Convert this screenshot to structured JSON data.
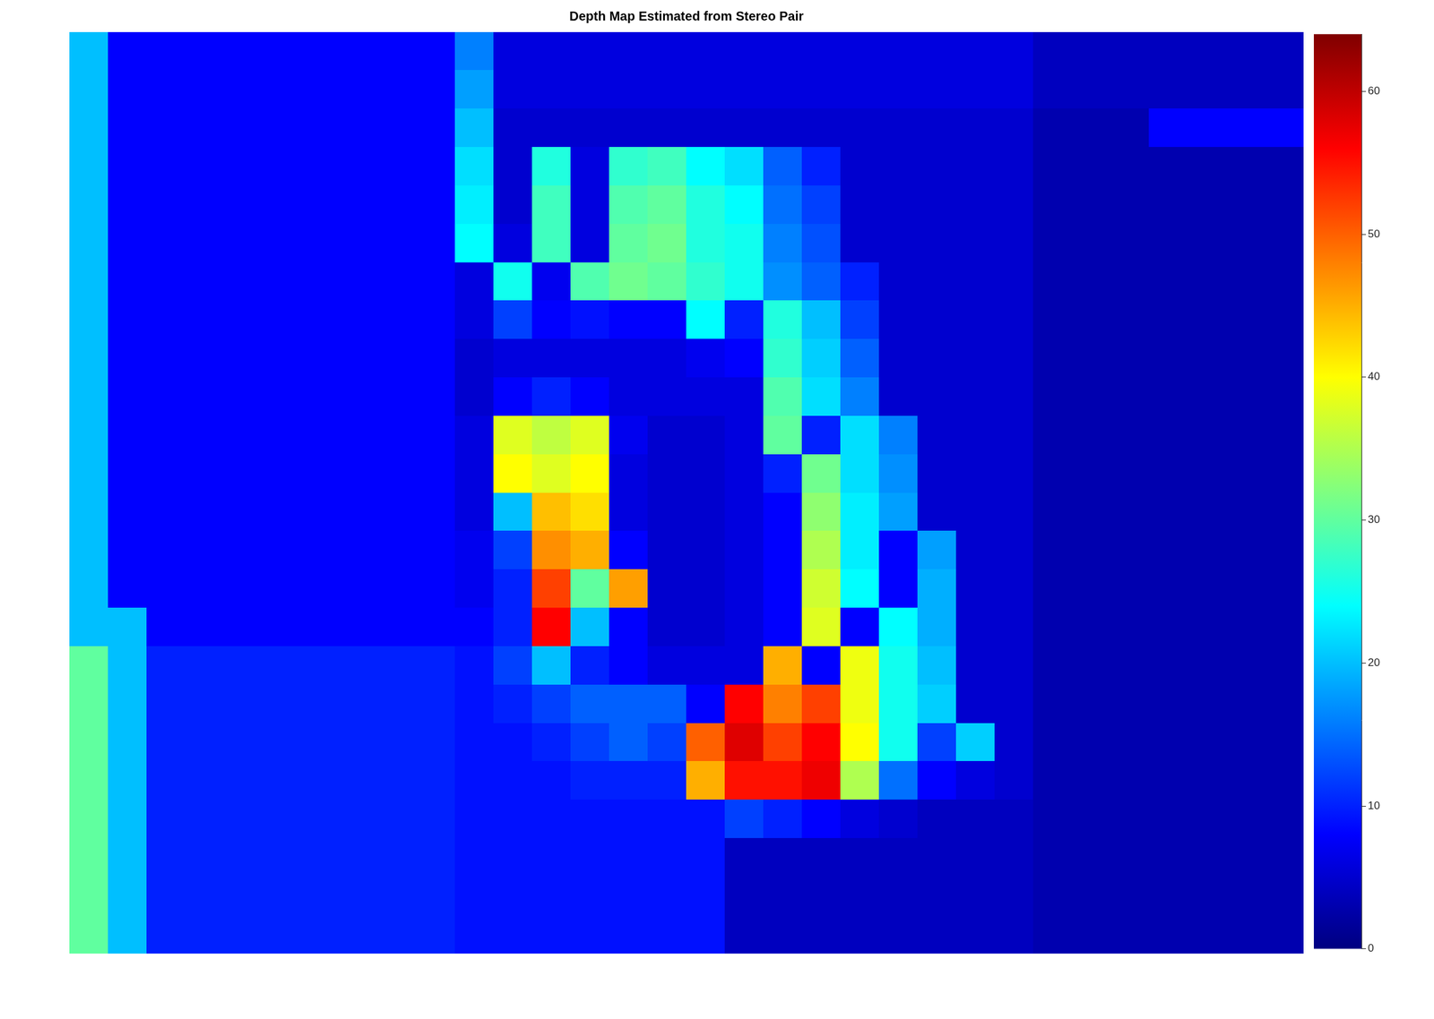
{
  "chart_data": {
    "type": "heatmap",
    "title": "Depth Map Estimated from Stereo Pair",
    "tick_labels": false,
    "cells": [
      [
        20,
        8,
        8,
        8,
        8,
        8,
        8,
        8,
        8,
        8,
        16,
        6,
        6,
        6,
        6,
        6,
        6,
        6,
        6,
        6,
        6,
        6,
        6,
        6,
        6,
        4,
        4,
        4,
        4,
        4,
        4,
        4
      ],
      [
        20,
        8,
        8,
        8,
        8,
        8,
        8,
        8,
        8,
        8,
        18,
        6,
        6,
        6,
        6,
        6,
        6,
        6,
        6,
        6,
        6,
        6,
        6,
        6,
        6,
        4,
        4,
        4,
        4,
        4,
        4,
        4
      ],
      [
        20,
        8,
        8,
        8,
        8,
        8,
        8,
        8,
        8,
        8,
        20,
        5,
        5,
        5,
        5,
        5,
        5,
        5,
        5,
        5,
        5,
        5,
        5,
        5,
        5,
        3,
        3,
        3,
        8,
        8,
        8,
        8
      ],
      [
        20,
        8,
        8,
        8,
        8,
        8,
        8,
        8,
        8,
        8,
        22,
        5,
        26,
        6,
        27,
        28,
        24,
        22,
        14,
        10,
        5,
        5,
        5,
        5,
        5,
        3,
        3,
        3,
        3,
        3,
        3,
        3
      ],
      [
        20,
        8,
        8,
        8,
        8,
        8,
        8,
        8,
        8,
        8,
        23,
        5,
        28,
        6,
        29,
        30,
        26,
        24,
        15,
        12,
        5,
        5,
        5,
        5,
        5,
        3,
        3,
        3,
        3,
        3,
        3,
        3
      ],
      [
        20,
        8,
        8,
        8,
        8,
        8,
        8,
        8,
        8,
        8,
        24,
        6,
        28,
        6,
        30,
        31,
        26,
        25,
        16,
        13,
        5,
        5,
        5,
        5,
        5,
        3,
        3,
        3,
        3,
        3,
        3,
        3
      ],
      [
        20,
        8,
        8,
        8,
        8,
        8,
        8,
        8,
        8,
        8,
        6,
        25,
        7,
        29,
        31,
        30,
        27,
        25,
        17,
        14,
        10,
        5,
        5,
        5,
        5,
        3,
        3,
        3,
        3,
        3,
        3,
        3
      ],
      [
        20,
        8,
        8,
        8,
        8,
        8,
        8,
        8,
        8,
        8,
        6,
        12,
        8,
        9,
        8,
        8,
        24,
        10,
        26,
        20,
        12,
        5,
        5,
        5,
        5,
        3,
        3,
        3,
        3,
        3,
        3,
        3
      ],
      [
        20,
        8,
        8,
        8,
        8,
        8,
        8,
        8,
        8,
        8,
        5,
        6,
        6,
        6,
        6,
        6,
        7,
        8,
        27,
        21,
        14,
        5,
        5,
        5,
        5,
        3,
        3,
        3,
        3,
        3,
        3,
        3
      ],
      [
        20,
        8,
        8,
        8,
        8,
        8,
        8,
        8,
        8,
        8,
        5,
        8,
        10,
        8,
        6,
        6,
        6,
        6,
        29,
        22,
        16,
        5,
        5,
        5,
        5,
        3,
        3,
        3,
        3,
        3,
        3,
        3
      ],
      [
        20,
        8,
        8,
        8,
        8,
        8,
        8,
        8,
        8,
        8,
        6,
        38,
        36,
        38,
        7,
        5,
        5,
        6,
        30,
        10,
        22,
        16,
        5,
        5,
        5,
        3,
        3,
        3,
        3,
        3,
        3,
        3
      ],
      [
        20,
        8,
        8,
        8,
        8,
        8,
        8,
        8,
        8,
        8,
        6,
        40,
        38,
        40,
        6,
        5,
        5,
        6,
        10,
        31,
        22,
        17,
        5,
        5,
        5,
        3,
        3,
        3,
        3,
        3,
        3,
        3
      ],
      [
        20,
        8,
        8,
        8,
        8,
        8,
        8,
        8,
        8,
        8,
        6,
        20,
        44,
        42,
        6,
        5,
        5,
        6,
        8,
        33,
        23,
        18,
        5,
        5,
        5,
        3,
        3,
        3,
        3,
        3,
        3,
        3
      ],
      [
        20,
        8,
        8,
        8,
        8,
        8,
        8,
        8,
        8,
        8,
        7,
        12,
        47,
        45,
        8,
        5,
        5,
        6,
        8,
        35,
        23,
        8,
        18,
        5,
        5,
        3,
        3,
        3,
        3,
        3,
        3,
        3
      ],
      [
        20,
        8,
        8,
        8,
        8,
        8,
        8,
        8,
        8,
        8,
        7,
        10,
        52,
        30,
        46,
        5,
        5,
        6,
        8,
        37,
        24,
        8,
        19,
        5,
        5,
        3,
        3,
        3,
        3,
        3,
        3,
        3
      ],
      [
        20,
        20,
        8,
        8,
        8,
        8,
        8,
        8,
        8,
        8,
        8,
        10,
        56,
        20,
        8,
        5,
        5,
        6,
        8,
        38,
        8,
        24,
        19,
        5,
        5,
        3,
        3,
        3,
        3,
        3,
        3,
        3
      ],
      [
        30,
        20,
        10,
        10,
        10,
        10,
        10,
        10,
        10,
        10,
        9,
        12,
        20,
        10,
        8,
        6,
        6,
        6,
        45,
        8,
        39,
        25,
        20,
        5,
        5,
        3,
        3,
        3,
        3,
        3,
        3,
        3
      ],
      [
        30,
        20,
        10,
        10,
        10,
        10,
        10,
        10,
        10,
        10,
        9,
        10,
        12,
        14,
        14,
        14,
        8,
        56,
        48,
        52,
        39,
        25,
        21,
        5,
        5,
        3,
        3,
        3,
        3,
        3,
        3,
        3
      ],
      [
        30,
        20,
        10,
        10,
        10,
        10,
        10,
        10,
        10,
        10,
        9,
        9,
        10,
        12,
        14,
        12,
        50,
        58,
        52,
        56,
        40,
        25,
        12,
        21,
        5,
        3,
        3,
        3,
        3,
        3,
        3,
        3
      ],
      [
        30,
        20,
        10,
        10,
        10,
        10,
        10,
        10,
        10,
        10,
        9,
        9,
        9,
        10,
        10,
        10,
        45,
        55,
        55,
        57,
        35,
        15,
        8,
        6,
        5,
        3,
        3,
        3,
        3,
        3,
        3,
        3
      ],
      [
        30,
        20,
        10,
        10,
        10,
        10,
        10,
        10,
        10,
        10,
        9,
        9,
        9,
        9,
        9,
        9,
        9,
        12,
        10,
        8,
        6,
        5,
        4,
        4,
        4,
        3,
        3,
        3,
        3,
        3,
        3,
        3
      ],
      [
        30,
        20,
        10,
        10,
        10,
        10,
        10,
        10,
        10,
        10,
        9,
        9,
        9,
        9,
        9,
        9,
        9,
        4,
        4,
        4,
        4,
        4,
        4,
        4,
        4,
        3,
        3,
        3,
        3,
        3,
        3,
        3
      ],
      [
        30,
        20,
        10,
        10,
        10,
        10,
        10,
        10,
        10,
        10,
        9,
        9,
        9,
        9,
        9,
        9,
        9,
        4,
        4,
        4,
        4,
        4,
        4,
        4,
        4,
        3,
        3,
        3,
        3,
        3,
        3,
        3
      ],
      [
        30,
        20,
        10,
        10,
        10,
        10,
        10,
        10,
        10,
        10,
        9,
        9,
        9,
        9,
        9,
        9,
        9,
        4,
        4,
        4,
        4,
        4,
        4,
        4,
        4,
        3,
        3,
        3,
        3,
        3,
        3,
        3
      ]
    ],
    "colorbar": {
      "range": [
        0,
        64
      ],
      "ticks": [
        0,
        10,
        20,
        30,
        40,
        50,
        60
      ]
    }
  }
}
